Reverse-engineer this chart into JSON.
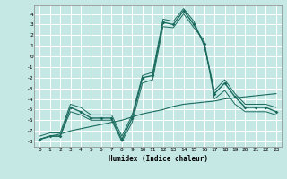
{
  "xlabel": "Humidex (Indice chaleur)",
  "xlim": [
    -0.5,
    23.5
  ],
  "ylim": [
    -8.5,
    4.8
  ],
  "yticks": [
    4,
    3,
    2,
    1,
    0,
    -1,
    -2,
    -3,
    -4,
    -5,
    -6,
    -7,
    -8
  ],
  "xticks": [
    0,
    1,
    2,
    3,
    4,
    5,
    6,
    7,
    8,
    9,
    10,
    11,
    12,
    13,
    14,
    15,
    16,
    17,
    18,
    19,
    20,
    21,
    22,
    23
  ],
  "background_color": "#c5e8e5",
  "grid_color": "#ffffff",
  "line_color": "#1a6b5e",
  "hours": [
    0,
    1,
    2,
    3,
    4,
    5,
    6,
    7,
    8,
    9,
    10,
    11,
    12,
    13,
    14,
    15,
    16,
    17,
    18,
    19,
    20,
    21,
    22,
    23
  ],
  "curve_main": [
    -7.8,
    -7.5,
    -7.5,
    -4.8,
    -5.2,
    -5.8,
    -5.8,
    -5.8,
    -7.8,
    -5.8,
    -2.0,
    -1.8,
    3.2,
    3.0,
    4.3,
    3.0,
    1.2,
    -3.5,
    -2.5,
    -3.8,
    -4.8,
    -4.8,
    -4.8,
    -5.2
  ],
  "curve_upper": [
    -7.5,
    -7.2,
    -7.2,
    -4.5,
    -4.8,
    -5.5,
    -5.5,
    -5.5,
    -7.5,
    -5.5,
    -1.8,
    -1.5,
    3.5,
    3.3,
    4.5,
    3.3,
    1.0,
    -3.2,
    -2.2,
    -3.5,
    -4.5,
    -4.5,
    -4.5,
    -4.8
  ],
  "curve_lower": [
    -7.8,
    -7.5,
    -7.5,
    -5.2,
    -5.5,
    -6.0,
    -6.0,
    -6.0,
    -8.0,
    -6.2,
    -2.5,
    -2.2,
    2.8,
    2.7,
    4.0,
    2.7,
    1.5,
    -4.0,
    -3.2,
    -4.5,
    -5.2,
    -5.2,
    -5.2,
    -5.5
  ],
  "curve_trend": [
    -7.8,
    -7.5,
    -7.3,
    -7.0,
    -6.8,
    -6.6,
    -6.4,
    -6.2,
    -6.0,
    -5.7,
    -5.4,
    -5.2,
    -5.0,
    -4.7,
    -4.5,
    -4.4,
    -4.3,
    -4.2,
    -4.0,
    -3.9,
    -3.8,
    -3.7,
    -3.6,
    -3.5
  ]
}
